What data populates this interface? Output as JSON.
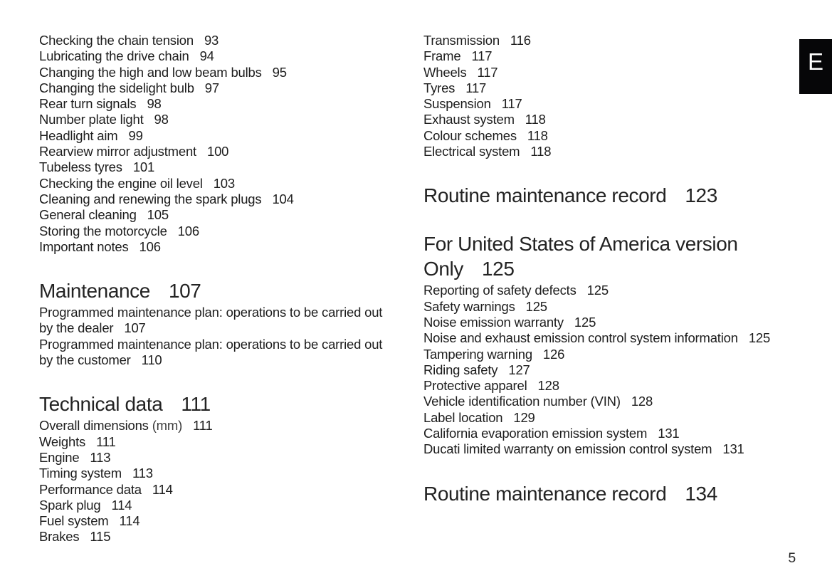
{
  "page": {
    "tab_letter": "E",
    "page_number": "5",
    "colors": {
      "background": "#ffffff",
      "text": "#1d1d1d",
      "tab_bg": "#060608",
      "tab_text": "#ffffff"
    }
  },
  "columns": [
    {
      "blocks": [
        {
          "type": "entries",
          "items": [
            {
              "label": "Checking the chain tension",
              "page": "93"
            },
            {
              "label": "Lubricating the drive chain",
              "page": "94"
            },
            {
              "label": "Changing the high and low beam bulbs",
              "page": "95"
            },
            {
              "label": "Changing the sidelight bulb",
              "page": "97"
            },
            {
              "label": "Rear turn signals",
              "page": "98"
            },
            {
              "label": "Number plate light",
              "page": "98"
            },
            {
              "label": "Headlight aim",
              "page": "99"
            },
            {
              "label": "Rearview mirror adjustment",
              "page": "100"
            },
            {
              "label": "Tubeless tyres",
              "page": "101"
            },
            {
              "label": "Checking the engine oil level",
              "page": "103"
            },
            {
              "label": "Cleaning and renewing the spark plugs",
              "page": "104"
            },
            {
              "label": "General cleaning",
              "page": "105"
            },
            {
              "label": "Storing the motorcycle",
              "page": "106"
            },
            {
              "label": "Important notes",
              "page": "106"
            }
          ]
        },
        {
          "type": "section",
          "title": "Maintenance",
          "page": "107"
        },
        {
          "type": "entries",
          "items": [
            {
              "label": [
                "Programmed maintenance plan: operations to be carried out",
                "by the dealer"
              ],
              "page": "107"
            },
            {
              "label": [
                "Programmed maintenance plan: operations to be carried out",
                "by the customer"
              ],
              "page": "110"
            }
          ]
        },
        {
          "type": "section",
          "title": "Technical data",
          "page": "111"
        },
        {
          "type": "entries",
          "items": [
            {
              "label": "Overall dimensions",
              "unit": "(mm)",
              "page": "111"
            },
            {
              "label": "Weights",
              "page": "111"
            },
            {
              "label": "Engine",
              "page": "113"
            },
            {
              "label": "Timing system",
              "page": "113"
            },
            {
              "label": "Performance data",
              "page": "114"
            },
            {
              "label": "Spark plug",
              "page": "114"
            },
            {
              "label": "Fuel system",
              "page": "114"
            },
            {
              "label": "Brakes",
              "page": "115"
            }
          ]
        }
      ]
    },
    {
      "blocks": [
        {
          "type": "entries",
          "items": [
            {
              "label": "Transmission",
              "page": "116"
            },
            {
              "label": "Frame",
              "page": "117"
            },
            {
              "label": "Wheels",
              "page": "117"
            },
            {
              "label": "Tyres",
              "page": "117"
            },
            {
              "label": "Suspension",
              "page": "117"
            },
            {
              "label": "Exhaust system",
              "page": "118"
            },
            {
              "label": "Colour schemes",
              "page": "118"
            },
            {
              "label": "Electrical system",
              "page": "118"
            }
          ]
        },
        {
          "type": "section",
          "title": "Routine maintenance record",
          "page": "123"
        },
        {
          "type": "section",
          "title": [
            "For United States of America version",
            "Only"
          ],
          "page": "125"
        },
        {
          "type": "entries",
          "items": [
            {
              "label": "Reporting of safety defects",
              "page": "125"
            },
            {
              "label": "Safety warnings",
              "page": "125"
            },
            {
              "label": "Noise emission warranty",
              "page": "125"
            },
            {
              "label": "Noise and exhaust emission control system information",
              "page": "125"
            },
            {
              "label": "Tampering warning",
              "page": "126"
            },
            {
              "label": "Riding safety",
              "page": "127"
            },
            {
              "label": "Protective apparel",
              "page": "128"
            },
            {
              "label": "Vehicle identification number (VIN)",
              "page": "128"
            },
            {
              "label": "Label location",
              "page": "129"
            },
            {
              "label": "California evaporation emission system",
              "page": "131"
            },
            {
              "label": "Ducati limited warranty on emission control system",
              "page": "131"
            }
          ]
        },
        {
          "type": "section",
          "title": "Routine maintenance record",
          "page": "134"
        }
      ]
    }
  ]
}
